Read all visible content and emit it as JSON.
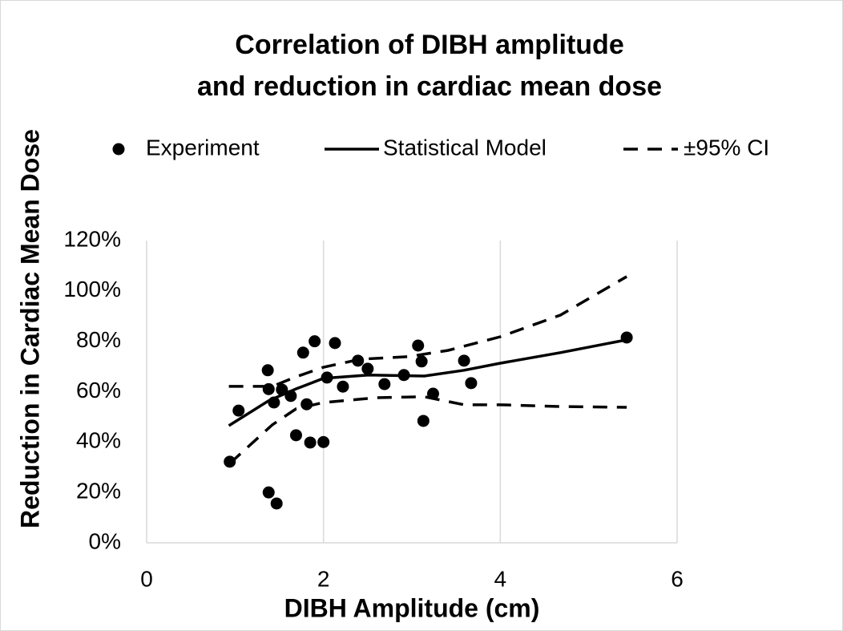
{
  "chart_data": {
    "type": "scatter",
    "title": [
      "Correlation of DIBH amplitude",
      "and reduction in cardiac mean dose"
    ],
    "x_label": "DIBH Amplitude (cm)",
    "y_label": "Reduction in Cardiac Mean Dose",
    "xlim": [
      0,
      6
    ],
    "xticks": [
      0,
      2,
      4,
      6
    ],
    "ylim": [
      0,
      120
    ],
    "yticks": [
      {
        "value": 0,
        "label": "0%"
      },
      {
        "value": 20,
        "label": "20%"
      },
      {
        "value": 40,
        "label": "40%"
      },
      {
        "value": 60,
        "label": "60%"
      },
      {
        "value": 80,
        "label": "80%"
      },
      {
        "value": 100,
        "label": "100%"
      },
      {
        "value": 120,
        "label": "120%"
      }
    ],
    "grid": "x",
    "legend": "top",
    "series": [
      {
        "name": "Experiment",
        "type": "scatter",
        "color": "#000000",
        "x": [
          0.94,
          1.04,
          1.37,
          1.38,
          1.38,
          1.44,
          1.47,
          1.53,
          1.63,
          1.69,
          1.77,
          1.81,
          1.85,
          1.9,
          2.0,
          2.04,
          2.13,
          2.22,
          2.39,
          2.5,
          2.69,
          2.91,
          3.07,
          3.11,
          3.13,
          3.24,
          3.59,
          3.67,
          5.43
        ],
        "values": [
          32.2,
          52.5,
          68.5,
          61,
          20,
          55.7,
          15.6,
          60.8,
          58.3,
          42.7,
          75.5,
          55,
          39.8,
          80,
          40,
          65.6,
          79.3,
          62,
          72.3,
          69.1,
          63,
          66.6,
          78.3,
          72,
          48.4,
          59.2,
          72.3,
          63.4,
          81.5
        ]
      },
      {
        "name": "Statistical Model",
        "type": "line",
        "color": "#000000",
        "x": [
          0.93,
          1.38,
          1.69,
          2.0,
          2.51,
          3.14,
          3.59,
          4.0,
          4.68,
          5.43
        ],
        "values": [
          46.5,
          56.4,
          61.1,
          65.3,
          66.6,
          66.2,
          68.5,
          71.3,
          75.5,
          80.6
        ]
      },
      {
        "name": "±95% CI",
        "type": "band",
        "color": "#000000",
        "x": [
          0.93,
          1.42,
          1.69,
          2.0,
          2.42,
          2.96,
          3.41,
          4.0,
          4.68,
          5.43
        ],
        "upper": [
          62.1,
          62.1,
          65.9,
          69.7,
          72.9,
          73.9,
          76.4,
          81.8,
          90.4,
          105.7
        ],
        "lower_x": [
          0.94,
          1.42,
          1.69,
          2.0,
          2.6,
          3.14,
          3.59,
          4.0,
          4.68,
          5.43
        ],
        "lower": [
          31.5,
          46.8,
          53.2,
          55.7,
          57.6,
          58,
          54.8,
          54.8,
          54.1,
          53.8
        ]
      }
    ]
  }
}
